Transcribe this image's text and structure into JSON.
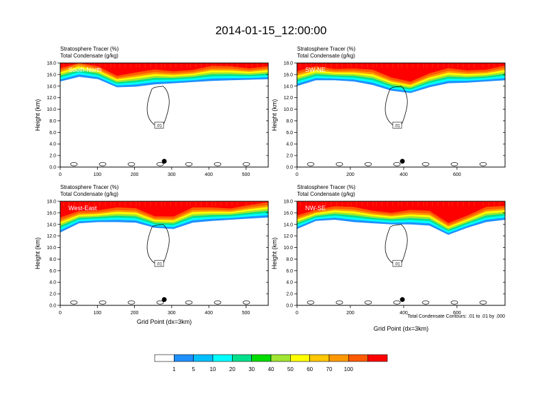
{
  "title": "2014-01-15_12:00:00",
  "footnote": "Total Condensate Contours: .01 to .01 by .000",
  "colorbar": {
    "levels": [
      "1",
      "5",
      "10",
      "20",
      "30",
      "40",
      "50",
      "60",
      "70",
      "100"
    ],
    "colors": [
      "#ffffff",
      "#1e90ff",
      "#00bfff",
      "#00ffff",
      "#00e08c",
      "#00dd00",
      "#a0e632",
      "#ffff00",
      "#ffc800",
      "#ff9900",
      "#ff5a00",
      "#ff0000"
    ]
  },
  "chart_data": [
    {
      "type": "heatmap",
      "name": "South-North",
      "title_line1": "Stratosphere Tracer   (%)",
      "title_line2": "Total Condensate   (g/kg)",
      "label": "South-North",
      "ylabel": "Height (km)",
      "xlabel": "",
      "xlim": [
        0,
        560
      ],
      "ylim": [
        0,
        18
      ],
      "xticks": [
        "0",
        "100",
        "200",
        "300",
        "400",
        "500"
      ],
      "yticks": [
        "0.0",
        "2.0",
        "4.0",
        "6.0",
        "8.0",
        "10.0",
        "12.0",
        "14.0",
        "16.0",
        "18.0"
      ],
      "tracer_base_km": [
        14.8,
        15.6,
        15.2,
        13.8,
        13.9,
        14.3,
        14.5,
        14.7,
        14.9,
        15.0,
        15.1,
        15.2
      ],
      "contour_label": ".01",
      "marker_x": 280
    },
    {
      "type": "heatmap",
      "name": "SW-NE",
      "title_line1": "Stratosphere Tracer   (%)",
      "title_line2": "Total Condensate   (g/kg)",
      "label": "SW-NE",
      "ylabel": "Height (km)",
      "xlabel": "",
      "xlim": [
        0,
        780
      ],
      "ylim": [
        0,
        18
      ],
      "xticks": [
        "0",
        "200",
        "400",
        "600"
      ],
      "yticks": [
        "0.0",
        "2.0",
        "4.0",
        "6.0",
        "8.0",
        "10.0",
        "12.0",
        "14.0",
        "16.0",
        "18.0"
      ],
      "tracer_base_km": [
        14.0,
        15.0,
        15.0,
        14.8,
        14.2,
        13.2,
        12.8,
        13.8,
        14.5,
        14.6,
        14.8,
        15.0
      ],
      "contour_label": ".01",
      "marker_x": 395
    },
    {
      "type": "heatmap",
      "name": "West-East",
      "title_line1": "Stratosphere Tracer   (%)",
      "title_line2": "Total Condensate   (g/kg)",
      "label": "West-East",
      "ylabel": "Height (km)",
      "xlabel": "Grid Point (dx=3km)",
      "xlim": [
        0,
        560
      ],
      "ylim": [
        0,
        18
      ],
      "xticks": [
        "0",
        "100",
        "200",
        "300",
        "400",
        "500"
      ],
      "yticks": [
        "0.0",
        "2.0",
        "4.0",
        "6.0",
        "8.0",
        "10.0",
        "12.0",
        "14.0",
        "16.0",
        "18.0"
      ],
      "tracer_base_km": [
        12.6,
        14.2,
        14.4,
        14.4,
        14.3,
        13.4,
        13.2,
        14.3,
        14.6,
        14.8,
        15.0,
        15.2
      ],
      "contour_label": ".01",
      "marker_x": 280
    },
    {
      "type": "heatmap",
      "name": "NW-SE",
      "title_line1": "Stratosphere Tracer   (%)",
      "title_line2": "Total Condensate   (g/kg)",
      "label": "NW-SE",
      "ylabel": "Height (km)",
      "xlabel": "Grid Point (dx=3km)",
      "xlim": [
        0,
        780
      ],
      "ylim": [
        0,
        18
      ],
      "xticks": [
        "0",
        "200",
        "400",
        "600"
      ],
      "yticks": [
        "0.0",
        "2.0",
        "4.0",
        "6.0",
        "8.0",
        "10.0",
        "12.0",
        "14.0",
        "16.0",
        "18.0"
      ],
      "tracer_base_km": [
        13.2,
        14.6,
        14.8,
        14.4,
        14.2,
        14.0,
        14.0,
        13.8,
        12.2,
        13.4,
        14.4,
        14.8
      ],
      "contour_label": ".01",
      "marker_x": 395
    }
  ]
}
